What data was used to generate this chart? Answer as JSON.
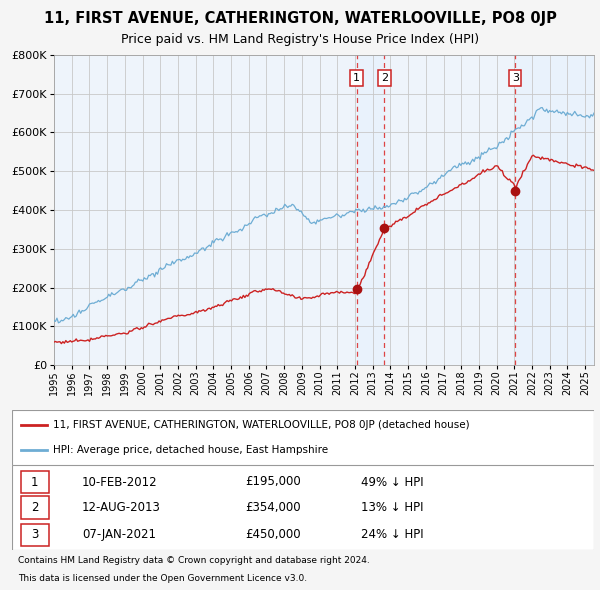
{
  "title": "11, FIRST AVENUE, CATHERINGTON, WATERLOOVILLE, PO8 0JP",
  "subtitle": "Price paid vs. HM Land Registry's House Price Index (HPI)",
  "ylim": [
    0,
    800000
  ],
  "yticks": [
    0,
    100000,
    200000,
    300000,
    400000,
    500000,
    600000,
    700000,
    800000
  ],
  "ytick_labels": [
    "£0",
    "£100K",
    "£200K",
    "£300K",
    "£400K",
    "£500K",
    "£600K",
    "£700K",
    "£800K"
  ],
  "xlim_start": 1995.0,
  "xlim_end": 2025.5,
  "background_color": "#f5f5f5",
  "plot_bg_color": "#eef4fb",
  "grid_color": "#cccccc",
  "hpi_line_color": "#6eadd4",
  "price_line_color": "#cc2222",
  "sale_marker_color": "#aa1111",
  "dashed_line_color": "#dd4444",
  "shade_color": "#ddeeff",
  "label1": "11, FIRST AVENUE, CATHERINGTON, WATERLOOVILLE, PO8 0JP (detached house)",
  "label2": "HPI: Average price, detached house, East Hampshire",
  "transactions": [
    {
      "num": 1,
      "date": "10-FEB-2012",
      "year": 2012.1,
      "price": 195000,
      "pct": "49%",
      "dir": "↓"
    },
    {
      "num": 2,
      "date": "12-AUG-2013",
      "year": 2013.65,
      "price": 354000,
      "pct": "13%",
      "dir": "↓"
    },
    {
      "num": 3,
      "date": "07-JAN-2021",
      "year": 2021.05,
      "price": 450000,
      "pct": "24%",
      "dir": "↓"
    }
  ],
  "footnote1": "Contains HM Land Registry data © Crown copyright and database right 2024.",
  "footnote2": "This data is licensed under the Open Government Licence v3.0."
}
